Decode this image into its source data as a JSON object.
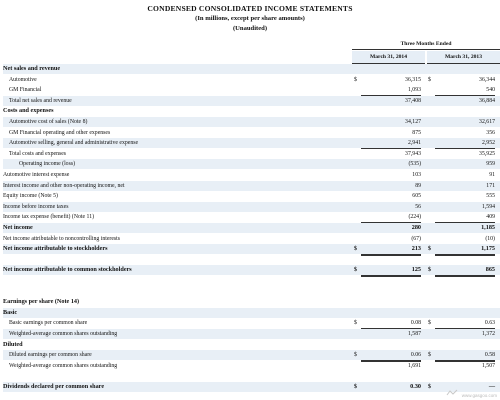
{
  "header": {
    "title": "CONDENSED CONSOLIDATED INCOME STATEMENTS",
    "subtitle": "(In millions, except per share amounts)",
    "unaudited": "(Unaudited)",
    "period_header": "Three Months Ended",
    "col_2014": "March 31, 2014",
    "col_2013": "March 31, 2013"
  },
  "rows": [
    {
      "label": "Net sales and revenue",
      "type": "sec",
      "shade": true
    },
    {
      "label": "Automotive",
      "indent": 1,
      "cur": "$",
      "v2014": "36,315",
      "v2013": "36,344"
    },
    {
      "label": "GM Financial",
      "indent": 1,
      "v2014": "1,093",
      "v2013": "540",
      "ul": true
    },
    {
      "label": "Total net sales and revenue",
      "indent": 1,
      "v2014": "37,408",
      "v2013": "36,884",
      "shade": true
    },
    {
      "label": "Costs and expenses",
      "type": "sec"
    },
    {
      "label": "Automotive cost of sales (Note 8)",
      "indent": 1,
      "v2014": "34,127",
      "v2013": "32,617",
      "shade": true
    },
    {
      "label": "GM Financial operating and other expenses",
      "indent": 1,
      "v2014": "875",
      "v2013": "356"
    },
    {
      "label": "Automotive selling, general and administrative expense",
      "indent": 1,
      "v2014": "2,941",
      "v2013": "2,952",
      "shade": true,
      "ul": true
    },
    {
      "label": "Total costs and expenses",
      "indent": 1,
      "v2014": "37,943",
      "v2013": "35,925",
      "ul": true
    },
    {
      "label": "Operating income (loss)",
      "indent": 2,
      "v2014": "(535)",
      "v2013": "959",
      "shade": true
    },
    {
      "label": "Automotive interest expense",
      "v2014": "103",
      "v2013": "91"
    },
    {
      "label": "Interest income and other non-operating income, net",
      "v2014": "89",
      "v2013": "171",
      "shade": true
    },
    {
      "label": "Equity income (Note 5)",
      "v2014": "605",
      "v2013": "555"
    },
    {
      "label": "Income before income taxes",
      "v2014": "56",
      "v2013": "1,594",
      "shade": true
    },
    {
      "label": "Income tax expense (benefit) (Note 11)",
      "v2014": "(224)",
      "v2013": "409",
      "ul": true
    },
    {
      "label": "Net income",
      "type": "bold",
      "v2014": "280",
      "v2013": "1,185",
      "shade": true
    },
    {
      "label": "Net income attributable to noncontrolling interests",
      "v2014": "(67)",
      "v2013": "(10)",
      "ul": true
    },
    {
      "label": "Net income attributable to stockholders",
      "type": "bold",
      "cur": "$",
      "v2014": "213",
      "v2013": "1,175",
      "shade": true,
      "dul": true
    },
    {
      "label": "",
      "gap": true
    },
    {
      "label": "Net income attributable to common stockholders",
      "type": "bold",
      "cur": "$",
      "v2014": "125",
      "v2013": "865",
      "shade": true,
      "dul": true
    },
    {
      "label": "",
      "gap": true
    },
    {
      "label": "",
      "gap": true
    },
    {
      "label": "Earnings per share (Note 14)",
      "type": "sec"
    },
    {
      "label": "Basic",
      "type": "sec",
      "shade": true
    },
    {
      "label": "Basic earnings per common share",
      "indent": 1,
      "cur": "$",
      "v2014": "0.08",
      "v2013": "0.63",
      "dul": true
    },
    {
      "label": "Weighted-average common shares outstanding",
      "indent": 1,
      "v2014": "1,587",
      "v2013": "1,372",
      "shade": true
    },
    {
      "label": "Diluted",
      "type": "sec"
    },
    {
      "label": "Diluted earnings per common share",
      "indent": 1,
      "cur": "$",
      "v2014": "0.06",
      "v2013": "0.58",
      "shade": true,
      "dul": true
    },
    {
      "label": "Weighted-average common shares outstanding",
      "indent": 1,
      "v2014": "1,691",
      "v2013": "1,507"
    },
    {
      "label": "",
      "gap": true
    },
    {
      "label": "Dividends declared per common share",
      "type": "bold",
      "cur": "$",
      "v2014": "0.30",
      "v2013": "—",
      "shade": true
    }
  ],
  "watermark": "www.gasgoo.com"
}
